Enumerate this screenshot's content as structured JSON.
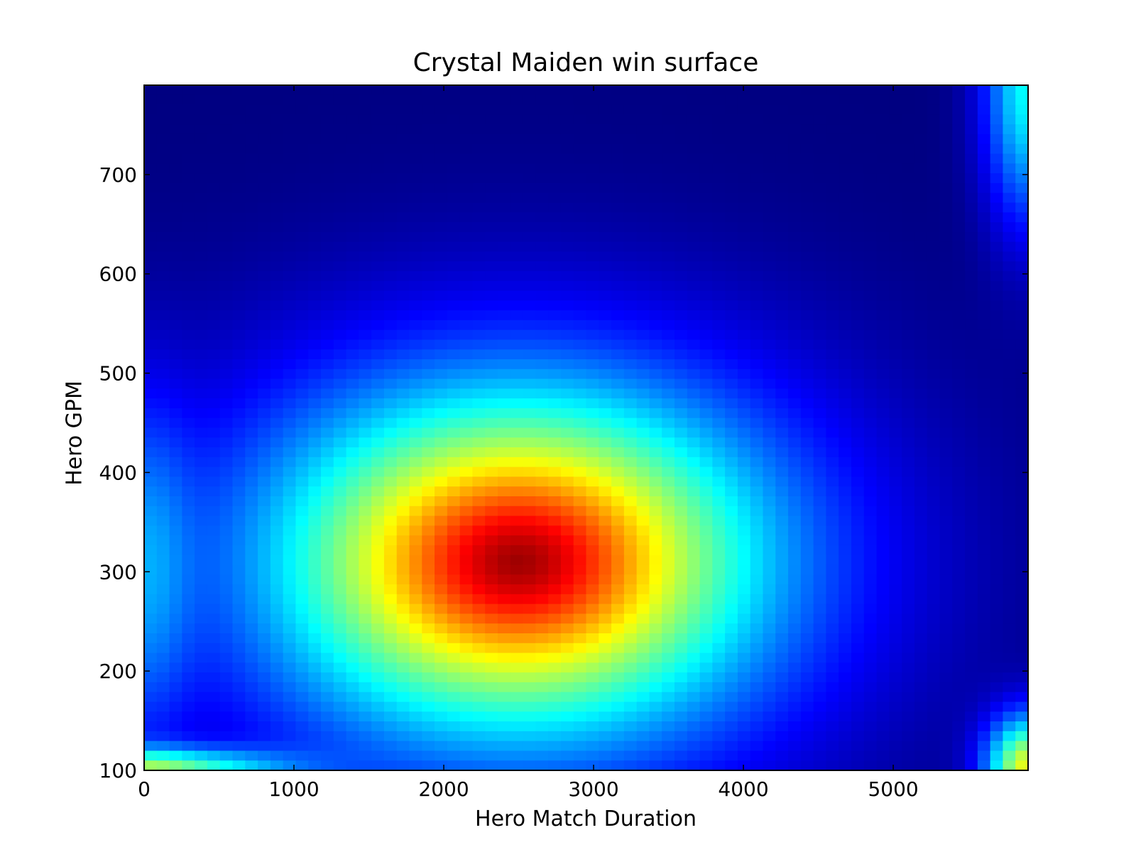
{
  "chart_data": {
    "type": "heatmap",
    "title": "Crystal Maiden win surface",
    "xlabel": "Hero Match Duration",
    "ylabel": "Hero GPM",
    "xlim": [
      0,
      5900
    ],
    "ylim": [
      100,
      790
    ],
    "x_ticks": [
      0,
      1000,
      2000,
      3000,
      4000,
      5000
    ],
    "y_ticks": [
      100,
      200,
      300,
      400,
      500,
      600,
      700
    ],
    "colormap": "jet",
    "grid": false,
    "legend": "none",
    "cells": {
      "nx": 70,
      "ny": 70
    },
    "surface": {
      "description_of_peaks": "values on 0-1 colormap scale",
      "peaks": [
        {
          "x": 2500,
          "y": 310,
          "value": 0.95
        },
        {
          "x": 5900,
          "y": 100,
          "value": 0.75
        },
        {
          "x": 5900,
          "y": 790,
          "value": 0.35
        },
        {
          "x": 0,
          "y": 100,
          "value": 0.55
        }
      ]
    }
  }
}
